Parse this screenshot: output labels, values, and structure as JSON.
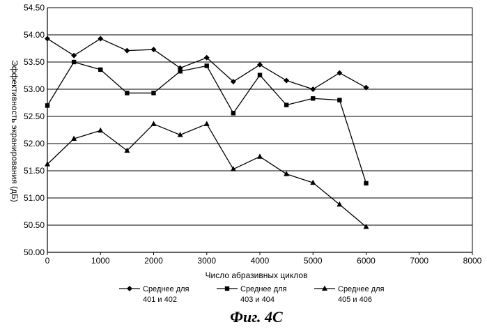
{
  "chart_data": {
    "type": "line",
    "xlabel": "Число абразивных циклов",
    "ylabel": "Эффективность экранирования (дБ)",
    "xlim": [
      0,
      8000
    ],
    "ylim": [
      50.0,
      54.5
    ],
    "xticks": [
      0,
      1000,
      2000,
      3000,
      4000,
      5000,
      6000,
      7000,
      8000
    ],
    "yticks": [
      "50.00",
      "50.50",
      "51.00",
      "51.50",
      "52.00",
      "52.50",
      "53.00",
      "53.50",
      "54.00",
      "54.50"
    ],
    "grid": "horizontal",
    "legend_position": "bottom",
    "caption": "Фиг. 4С",
    "x": [
      0,
      500,
      1000,
      1500,
      2000,
      2500,
      3000,
      3500,
      4000,
      4500,
      5000,
      5500,
      6000
    ],
    "series": [
      {
        "name": "Среднее для 401 и 402",
        "name_lines": [
          "Среднее для",
          "401 и 402"
        ],
        "marker": "diamond",
        "values": [
          53.93,
          53.62,
          53.93,
          53.71,
          53.73,
          53.39,
          53.58,
          53.14,
          53.45,
          53.16,
          53.0,
          53.3,
          53.03
        ]
      },
      {
        "name": "Среднее для 403 и 404",
        "name_lines": [
          "Среднее для",
          "403 и 404"
        ],
        "marker": "square",
        "values": [
          52.7,
          53.5,
          53.36,
          52.93,
          52.93,
          53.33,
          53.43,
          52.56,
          53.26,
          52.71,
          52.83,
          52.8,
          51.27
        ]
      },
      {
        "name": "Среднее для 405 и 406",
        "name_lines": [
          "Среднее для",
          "405 и 406"
        ],
        "marker": "triangle",
        "values": [
          51.62,
          52.09,
          52.24,
          51.87,
          52.36,
          52.16,
          52.36,
          51.53,
          51.76,
          51.44,
          51.28,
          50.88,
          50.47
        ]
      }
    ]
  }
}
